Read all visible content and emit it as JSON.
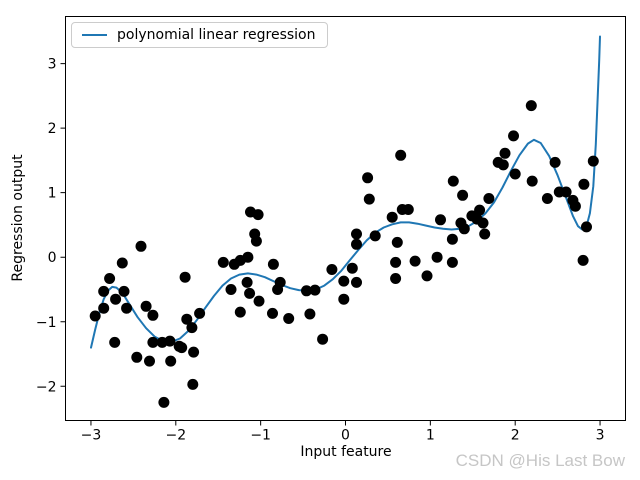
{
  "figure": {
    "watermark": "CSDN @His Last Bow"
  },
  "legend": {
    "label": "polynomial linear regression"
  },
  "chart_data": {
    "type": "scatter",
    "title": "",
    "xlabel": "Input feature",
    "ylabel": "Regression output",
    "xlim": [
      -3.3,
      3.3
    ],
    "ylim": [
      -2.53,
      3.73
    ],
    "grid": false,
    "legend_position": "upper left",
    "x_ticks": {
      "values": [
        -3,
        -2,
        -1,
        0,
        1,
        2,
        3
      ],
      "labels": [
        "−3",
        "−2",
        "−1",
        "0",
        "1",
        "2",
        "3"
      ]
    },
    "y_ticks": {
      "values": [
        -2,
        -1,
        0,
        1,
        2,
        3
      ],
      "labels": [
        "−2",
        "−1",
        "0",
        "1",
        "2",
        "3"
      ]
    },
    "colors": {
      "line": "#1f77b4",
      "scatter": "#000000",
      "spine": "#000000",
      "tick_label": "#000000",
      "watermark": "#c6c6c6"
    },
    "series": [
      {
        "name": "samples",
        "type": "scatter",
        "color": "#000000",
        "marker_radius": 5.5,
        "points": [
          [
            -2.95,
            -0.91
          ],
          [
            -2.85,
            -0.53
          ],
          [
            -2.85,
            -0.79
          ],
          [
            -2.78,
            -0.33
          ],
          [
            -2.72,
            -1.32
          ],
          [
            -2.71,
            -0.65
          ],
          [
            -2.63,
            -0.09
          ],
          [
            -2.61,
            -0.53
          ],
          [
            -2.58,
            -0.79
          ],
          [
            -2.46,
            -1.55
          ],
          [
            -2.41,
            0.17
          ],
          [
            -2.35,
            -0.76
          ],
          [
            -2.31,
            -1.61
          ],
          [
            -2.27,
            -0.9
          ],
          [
            -2.27,
            -1.32
          ],
          [
            -2.16,
            -1.32
          ],
          [
            -2.14,
            -2.25
          ],
          [
            -2.07,
            -1.3
          ],
          [
            -2.06,
            -1.61
          ],
          [
            -1.96,
            -1.38
          ],
          [
            -1.93,
            -1.4
          ],
          [
            -1.89,
            -0.31
          ],
          [
            -1.87,
            -0.96
          ],
          [
            -1.81,
            -1.09
          ],
          [
            -1.8,
            -1.97
          ],
          [
            -1.79,
            -1.47
          ],
          [
            -1.72,
            -0.87
          ],
          [
            -1.44,
            -0.08
          ],
          [
            -1.35,
            -0.5
          ],
          [
            -1.31,
            -0.11
          ],
          [
            -1.24,
            -0.05
          ],
          [
            -1.24,
            -0.85
          ],
          [
            -1.16,
            -0.39
          ],
          [
            -1.15,
            0.0
          ],
          [
            -1.13,
            -0.56
          ],
          [
            -1.12,
            0.7
          ],
          [
            -1.07,
            0.36
          ],
          [
            -1.05,
            0.25
          ],
          [
            -1.03,
            0.66
          ],
          [
            -1.02,
            -0.68
          ],
          [
            -0.86,
            -0.87
          ],
          [
            -0.85,
            -0.11
          ],
          [
            -0.8,
            -0.5
          ],
          [
            -0.77,
            -0.39
          ],
          [
            -0.67,
            -0.95
          ],
          [
            -0.46,
            -0.52
          ],
          [
            -0.42,
            -0.88
          ],
          [
            -0.36,
            -0.51
          ],
          [
            -0.27,
            -1.27
          ],
          [
            -0.16,
            -0.19
          ],
          [
            -0.02,
            -0.37
          ],
          [
            -0.02,
            -0.65
          ],
          [
            0.08,
            -0.17
          ],
          [
            0.13,
            0.36
          ],
          [
            0.13,
            0.2
          ],
          [
            0.13,
            -0.39
          ],
          [
            0.26,
            1.23
          ],
          [
            0.28,
            0.9
          ],
          [
            0.35,
            0.33
          ],
          [
            0.55,
            0.62
          ],
          [
            0.59,
            -0.08
          ],
          [
            0.59,
            -0.33
          ],
          [
            0.61,
            0.23
          ],
          [
            0.65,
            1.58
          ],
          [
            0.67,
            0.74
          ],
          [
            0.74,
            0.74
          ],
          [
            0.82,
            -0.06
          ],
          [
            0.96,
            -0.29
          ],
          [
            1.08,
            0.0
          ],
          [
            1.12,
            0.58
          ],
          [
            1.26,
            0.28
          ],
          [
            1.26,
            -0.08
          ],
          [
            1.27,
            1.18
          ],
          [
            1.36,
            0.53
          ],
          [
            1.38,
            0.96
          ],
          [
            1.4,
            0.44
          ],
          [
            1.49,
            0.64
          ],
          [
            1.55,
            0.59
          ],
          [
            1.58,
            0.73
          ],
          [
            1.62,
            0.53
          ],
          [
            1.64,
            0.36
          ],
          [
            1.69,
            0.91
          ],
          [
            1.8,
            1.47
          ],
          [
            1.86,
            1.43
          ],
          [
            1.88,
            1.61
          ],
          [
            1.98,
            1.88
          ],
          [
            2.0,
            1.29
          ],
          [
            2.19,
            2.35
          ],
          [
            2.2,
            1.18
          ],
          [
            2.38,
            0.91
          ],
          [
            2.47,
            1.47
          ],
          [
            2.52,
            1.01
          ],
          [
            2.6,
            1.01
          ],
          [
            2.68,
            0.88
          ],
          [
            2.71,
            0.79
          ],
          [
            2.81,
            1.13
          ],
          [
            2.8,
            -0.05
          ],
          [
            2.84,
            0.47
          ],
          [
            2.92,
            1.49
          ]
        ]
      },
      {
        "name": "polynomial linear regression",
        "type": "line",
        "color": "#1f77b4",
        "line_width": 2,
        "points": [
          [
            -3.0,
            -1.4
          ],
          [
            -2.95,
            -1.12
          ],
          [
            -2.9,
            -0.86
          ],
          [
            -2.85,
            -0.65
          ],
          [
            -2.8,
            -0.52
          ],
          [
            -2.75,
            -0.46
          ],
          [
            -2.7,
            -0.47
          ],
          [
            -2.63,
            -0.55
          ],
          [
            -2.55,
            -0.72
          ],
          [
            -2.45,
            -0.93
          ],
          [
            -2.35,
            -1.1
          ],
          [
            -2.25,
            -1.23
          ],
          [
            -2.15,
            -1.3
          ],
          [
            -2.05,
            -1.31
          ],
          [
            -1.95,
            -1.26
          ],
          [
            -1.85,
            -1.14
          ],
          [
            -1.75,
            -0.97
          ],
          [
            -1.65,
            -0.78
          ],
          [
            -1.55,
            -0.6
          ],
          [
            -1.45,
            -0.44
          ],
          [
            -1.35,
            -0.33
          ],
          [
            -1.25,
            -0.27
          ],
          [
            -1.15,
            -0.25
          ],
          [
            -1.05,
            -0.27
          ],
          [
            -0.95,
            -0.31
          ],
          [
            -0.85,
            -0.37
          ],
          [
            -0.75,
            -0.43
          ],
          [
            -0.65,
            -0.48
          ],
          [
            -0.55,
            -0.51
          ],
          [
            -0.45,
            -0.52
          ],
          [
            -0.35,
            -0.5
          ],
          [
            -0.25,
            -0.44
          ],
          [
            -0.15,
            -0.34
          ],
          [
            -0.05,
            -0.21
          ],
          [
            0.05,
            -0.05
          ],
          [
            0.15,
            0.11
          ],
          [
            0.25,
            0.26
          ],
          [
            0.35,
            0.38
          ],
          [
            0.45,
            0.46
          ],
          [
            0.55,
            0.51
          ],
          [
            0.65,
            0.54
          ],
          [
            0.75,
            0.54
          ],
          [
            0.85,
            0.52
          ],
          [
            0.95,
            0.49
          ],
          [
            1.05,
            0.46
          ],
          [
            1.15,
            0.44
          ],
          [
            1.25,
            0.43
          ],
          [
            1.35,
            0.44
          ],
          [
            1.45,
            0.48
          ],
          [
            1.55,
            0.56
          ],
          [
            1.65,
            0.68
          ],
          [
            1.75,
            0.85
          ],
          [
            1.85,
            1.08
          ],
          [
            1.95,
            1.34
          ],
          [
            2.05,
            1.58
          ],
          [
            2.15,
            1.76
          ],
          [
            2.22,
            1.82
          ],
          [
            2.3,
            1.77
          ],
          [
            2.4,
            1.57
          ],
          [
            2.5,
            1.27
          ],
          [
            2.6,
            0.92
          ],
          [
            2.68,
            0.64
          ],
          [
            2.74,
            0.48
          ],
          [
            2.79,
            0.43
          ],
          [
            2.84,
            0.48
          ],
          [
            2.88,
            0.68
          ],
          [
            2.92,
            1.1
          ],
          [
            2.95,
            1.75
          ],
          [
            2.97,
            2.4
          ],
          [
            2.99,
            3.05
          ],
          [
            3.0,
            3.42
          ]
        ]
      }
    ]
  }
}
